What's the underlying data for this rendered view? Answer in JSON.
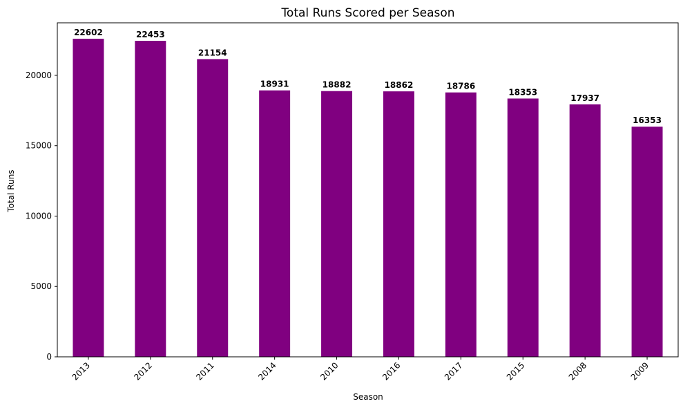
{
  "chart_data": {
    "type": "bar",
    "title": "Total Runs Scored per Season",
    "xlabel": "Season",
    "ylabel": "Total Runs",
    "categories": [
      "2013",
      "2012",
      "2011",
      "2014",
      "2010",
      "2016",
      "2017",
      "2015",
      "2008",
      "2009"
    ],
    "values": [
      22602,
      22453,
      21154,
      18931,
      18882,
      18862,
      18786,
      18353,
      17937,
      16353
    ],
    "ylim": [
      0,
      23732
    ],
    "yticks": [
      0,
      5000,
      10000,
      15000,
      20000
    ],
    "bar_color": "#800080",
    "grid": false,
    "legend": false
  }
}
